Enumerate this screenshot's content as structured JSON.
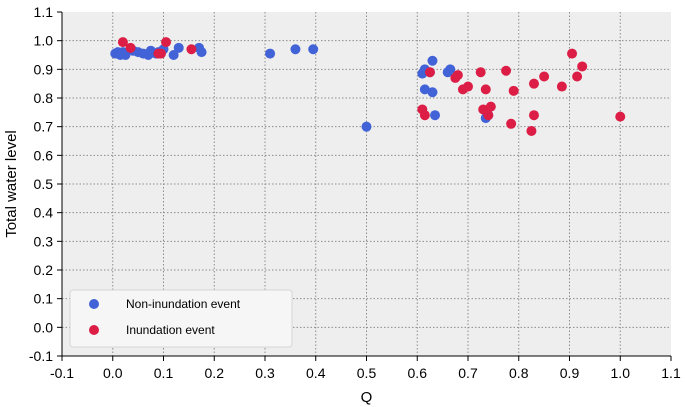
{
  "chart_data": {
    "type": "scatter",
    "xlabel": "Q",
    "ylabel": "Total water level",
    "xlim": [
      -0.1,
      1.1
    ],
    "ylim": [
      -0.1,
      1.1
    ],
    "x_ticks": [
      "-0.1",
      "0.0",
      "0.1",
      "0.2",
      "0.3",
      "0.4",
      "0.5",
      "0.6",
      "0.7",
      "0.8",
      "0.9",
      "1.0",
      "1.1"
    ],
    "y_ticks": [
      "-0.1",
      "0.0",
      "0.1",
      "0.2",
      "0.3",
      "0.4",
      "0.5",
      "0.6",
      "0.7",
      "0.8",
      "0.9",
      "1.0",
      "1.1"
    ],
    "grid": true,
    "grid_style": "dotted",
    "background_color": "#eeeeee",
    "legend_position": "bottom-left",
    "series": [
      {
        "name": "Non-inundation event",
        "color": "#4262d8",
        "points": [
          [
            0.005,
            0.955
          ],
          [
            0.01,
            0.96
          ],
          [
            0.015,
            0.95
          ],
          [
            0.02,
            0.96
          ],
          [
            0.025,
            0.95
          ],
          [
            0.04,
            0.965
          ],
          [
            0.05,
            0.96
          ],
          [
            0.06,
            0.955
          ],
          [
            0.07,
            0.95
          ],
          [
            0.075,
            0.965
          ],
          [
            0.085,
            0.955
          ],
          [
            0.09,
            0.96
          ],
          [
            0.1,
            0.97
          ],
          [
            0.12,
            0.95
          ],
          [
            0.13,
            0.975
          ],
          [
            0.17,
            0.975
          ],
          [
            0.175,
            0.96
          ],
          [
            0.31,
            0.955
          ],
          [
            0.36,
            0.97
          ],
          [
            0.395,
            0.97
          ],
          [
            0.5,
            0.7
          ],
          [
            0.61,
            0.885
          ],
          [
            0.615,
            0.9
          ],
          [
            0.615,
            0.83
          ],
          [
            0.625,
            0.89
          ],
          [
            0.63,
            0.93
          ],
          [
            0.63,
            0.82
          ],
          [
            0.635,
            0.74
          ],
          [
            0.66,
            0.89
          ],
          [
            0.665,
            0.9
          ],
          [
            0.735,
            0.73
          ],
          [
            0.74,
            0.74
          ]
        ]
      },
      {
        "name": "Inundation event",
        "color": "#dc1e46",
        "points": [
          [
            0.02,
            0.995
          ],
          [
            0.035,
            0.975
          ],
          [
            0.09,
            0.955
          ],
          [
            0.095,
            0.955
          ],
          [
            0.105,
            0.995
          ],
          [
            0.155,
            0.97
          ],
          [
            0.61,
            0.76
          ],
          [
            0.615,
            0.74
          ],
          [
            0.625,
            0.89
          ],
          [
            0.675,
            0.87
          ],
          [
            0.68,
            0.88
          ],
          [
            0.69,
            0.83
          ],
          [
            0.7,
            0.84
          ],
          [
            0.725,
            0.89
          ],
          [
            0.73,
            0.76
          ],
          [
            0.735,
            0.83
          ],
          [
            0.74,
            0.74
          ],
          [
            0.745,
            0.77
          ],
          [
            0.775,
            0.895
          ],
          [
            0.785,
            0.71
          ],
          [
            0.79,
            0.825
          ],
          [
            0.825,
            0.685
          ],
          [
            0.83,
            0.74
          ],
          [
            0.83,
            0.85
          ],
          [
            0.85,
            0.875
          ],
          [
            0.885,
            0.84
          ],
          [
            0.905,
            0.955
          ],
          [
            0.915,
            0.875
          ],
          [
            0.925,
            0.91
          ],
          [
            1.0,
            0.735
          ]
        ]
      }
    ]
  }
}
